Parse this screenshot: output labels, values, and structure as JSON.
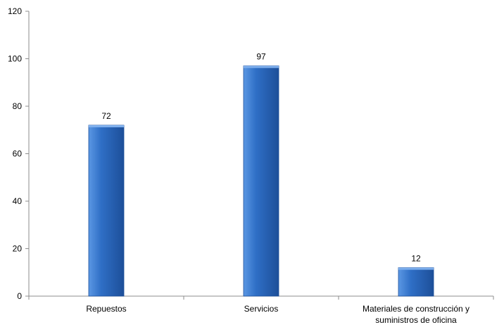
{
  "chart_data": {
    "type": "bar",
    "title": "",
    "xlabel": "",
    "ylabel": "",
    "categories": [
      [
        "Repuestos"
      ],
      [
        "Servicios"
      ],
      [
        "Materiales de construcción y",
        "suministros de oficina"
      ]
    ],
    "values": [
      72,
      97,
      12
    ],
    "data_labels": [
      "72",
      "97",
      "12"
    ],
    "ylim": [
      0,
      120
    ],
    "yticks": [
      0,
      20,
      40,
      60,
      80,
      100,
      120
    ],
    "ytick_labels": [
      "0",
      "20",
      "40",
      "60",
      "80",
      "100",
      "120"
    ],
    "grid": false,
    "legend": "none",
    "colors": {
      "bar_fill": "#2f6fc6",
      "bar_light": "#5b97e3",
      "bar_dark": "#1d4f99",
      "bar_top": "#7fb0ee",
      "axis": "#8c8c8c"
    }
  }
}
